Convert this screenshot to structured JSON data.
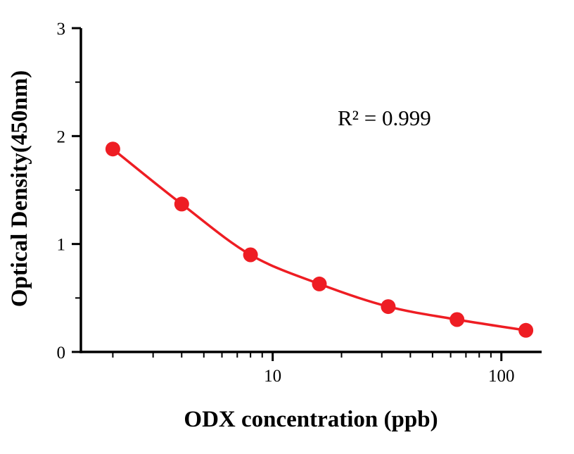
{
  "chart_data": {
    "type": "scatter",
    "x": [
      2,
      4,
      8,
      16,
      32,
      64,
      128
    ],
    "y": [
      1.88,
      1.37,
      0.9,
      0.63,
      0.42,
      0.3,
      0.2
    ],
    "xlabel": "ODX concentration (ppb)",
    "ylabel": "Optical Density(450nm)",
    "annotation": "R² = 0.999",
    "x_scale": "log10",
    "xlim": [
      1.45,
      150
    ],
    "ylim": [
      0,
      3
    ],
    "x_ticks": [
      10,
      100
    ],
    "x_tick_labels": [
      "10",
      "100"
    ],
    "y_ticks": [
      0,
      1,
      2,
      3
    ],
    "y_tick_labels": [
      "0",
      "1",
      "2",
      "3"
    ],
    "y_minor_ticks": [
      0.5,
      1.5,
      2.5
    ],
    "x_minor_ticks": [
      2,
      3,
      4,
      5,
      6,
      7,
      8,
      9,
      20,
      30,
      40,
      50,
      60,
      70,
      80,
      90
    ],
    "marker_color": "#ee1d23",
    "line_color": "#ee1d23",
    "axis_color": "#000000",
    "background": "#ffffff",
    "grid": false,
    "legend": "none"
  }
}
